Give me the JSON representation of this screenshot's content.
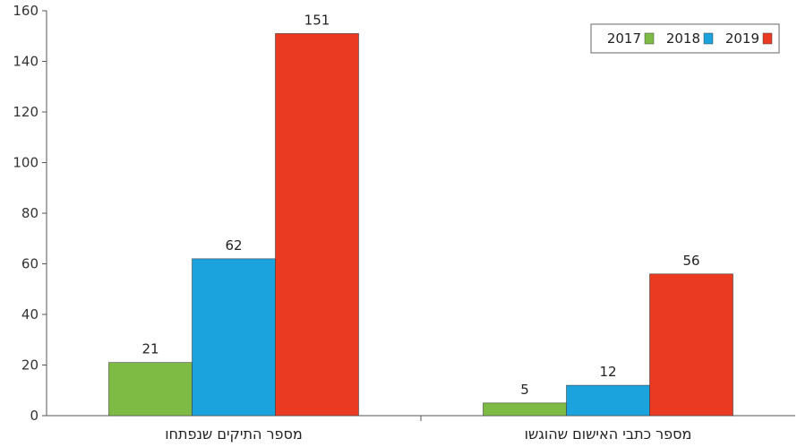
{
  "chart_data": {
    "type": "bar",
    "categories": [
      "מספר התיקים שנפתחו",
      "מספר כתבי האישום שהוגשו"
    ],
    "series": [
      {
        "name": "2017",
        "values": [
          21,
          5
        ],
        "color": "#7dbb45"
      },
      {
        "name": "2018",
        "values": [
          62,
          12
        ],
        "color": "#1aa3dd"
      },
      {
        "name": "2019",
        "values": [
          151,
          56
        ],
        "color": "#ea3a22"
      }
    ],
    "y_ticks": [
      "0",
      "20",
      "40",
      "60",
      "80",
      "100",
      "120",
      "140",
      "160"
    ],
    "ylim": [
      0,
      160
    ],
    "grid": false,
    "legend_position": "top-right",
    "title": "",
    "xlabel": "",
    "ylabel": ""
  }
}
